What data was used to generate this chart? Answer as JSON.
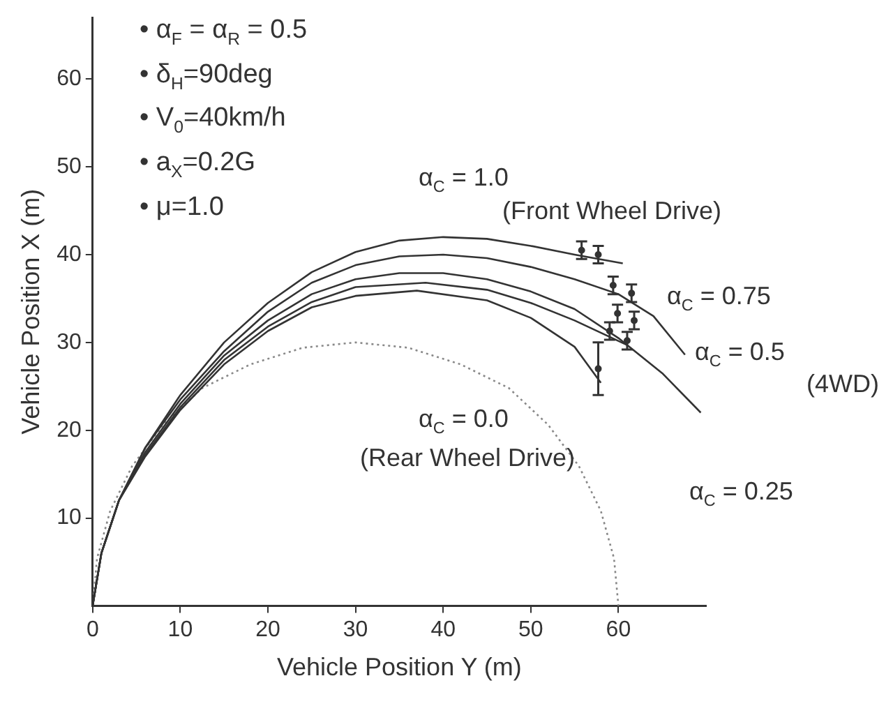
{
  "chart_data": {
    "type": "line",
    "xlabel": "Vehicle Position Y (m)",
    "ylabel": "Vehicle Position X (m)",
    "xlim": [
      0,
      70
    ],
    "ylim": [
      0,
      67
    ],
    "xticks": [
      0,
      10,
      20,
      30,
      40,
      50,
      60
    ],
    "yticks": [
      10,
      20,
      30,
      40,
      50,
      60
    ],
    "grid": false,
    "legend": false,
    "marker": "none",
    "annotations": [
      "• α$_{F}$ = α$_{R}$ = 0.5",
      "• δ$_{H}$=90deg",
      "• V$_{0}$=40km/h",
      "• a$_{X}$=0.2G",
      "• μ=1.0",
      "α$_{C}$ = 1.0",
      "(Front Wheel Drive)",
      "α$_{C}$ = 0.75",
      "α$_{C}$ = 0.5",
      "(4WD)",
      "α$_{C}$ = 0.25",
      "α$_{C}$ = 0.0",
      "(Rear Wheel Drive)"
    ],
    "series": [
      {
        "color": "#333333",
        "x": [
          0,
          1,
          3,
          6,
          10,
          15,
          20,
          25,
          30,
          35,
          40,
          45,
          50,
          55,
          60.5
        ],
        "values": [
          0,
          6,
          12,
          18,
          24,
          30,
          34.5,
          38,
          40.3,
          41.6,
          42,
          41.8,
          41,
          40,
          39
        ]
      },
      {
        "color": "#333333",
        "x": [
          0,
          1,
          3,
          6,
          10,
          15,
          20,
          25,
          30,
          35,
          40,
          45,
          50,
          55,
          60,
          64,
          67.6
        ],
        "values": [
          0,
          6,
          12,
          18,
          23.5,
          29,
          33.5,
          36.8,
          38.8,
          39.8,
          40,
          39.6,
          38.6,
          37.2,
          35.5,
          33,
          28.6
        ]
      },
      {
        "color": "#333333",
        "x": [
          0,
          1,
          3,
          6,
          10,
          15,
          20,
          25,
          30,
          35,
          40,
          45,
          50,
          55,
          60,
          65,
          69.4
        ],
        "values": [
          0,
          6,
          12,
          17.5,
          23,
          28.5,
          32.5,
          35.5,
          37.2,
          37.9,
          37.9,
          37.2,
          35.8,
          33.8,
          30.5,
          26.5,
          22
        ]
      },
      {
        "color": "#333333",
        "x": [
          0,
          1,
          3,
          6,
          10,
          15,
          20,
          25,
          30,
          38,
          45,
          50,
          55,
          61
        ],
        "values": [
          0,
          6,
          12,
          17.2,
          22.6,
          28,
          31.8,
          34.6,
          36.3,
          36.8,
          36,
          34.5,
          32.5,
          29.7
        ]
      },
      {
        "color": "#333333",
        "x": [
          0,
          1,
          3,
          6,
          10,
          15,
          20,
          25,
          30,
          37,
          45,
          50,
          55,
          58
        ],
        "values": [
          0,
          6,
          12,
          17,
          22.3,
          27.5,
          31.3,
          34,
          35.3,
          35.9,
          34.8,
          32.8,
          29.5,
          25.4
        ]
      },
      {
        "color": "#888888",
        "line_style": "dotted",
        "x": [
          0,
          0.5,
          2,
          4.5,
          8,
          12.5,
          18,
          24,
          30,
          36,
          42,
          47.5,
          52,
          55.5,
          58,
          59.5,
          60
        ],
        "values": [
          0,
          5.4,
          10.8,
          15.9,
          20.6,
          24.8,
          27.5,
          29.4,
          30,
          29.4,
          27.5,
          24.8,
          20.6,
          15.9,
          10.8,
          5.4,
          0
        ]
      },
      {
        "type": "scatter",
        "marker": "circle",
        "color": "#333333",
        "x": [
          55.8,
          57.7,
          59.4,
          61.5,
          59.9,
          61.8,
          59,
          61,
          57.7
        ],
        "values": [
          40.5,
          40,
          36.5,
          35.6,
          33.3,
          32.5,
          31.3,
          30.2,
          27
        ],
        "errors": [
          1,
          1,
          1,
          1,
          1,
          1,
          1,
          1,
          3
        ]
      }
    ]
  }
}
